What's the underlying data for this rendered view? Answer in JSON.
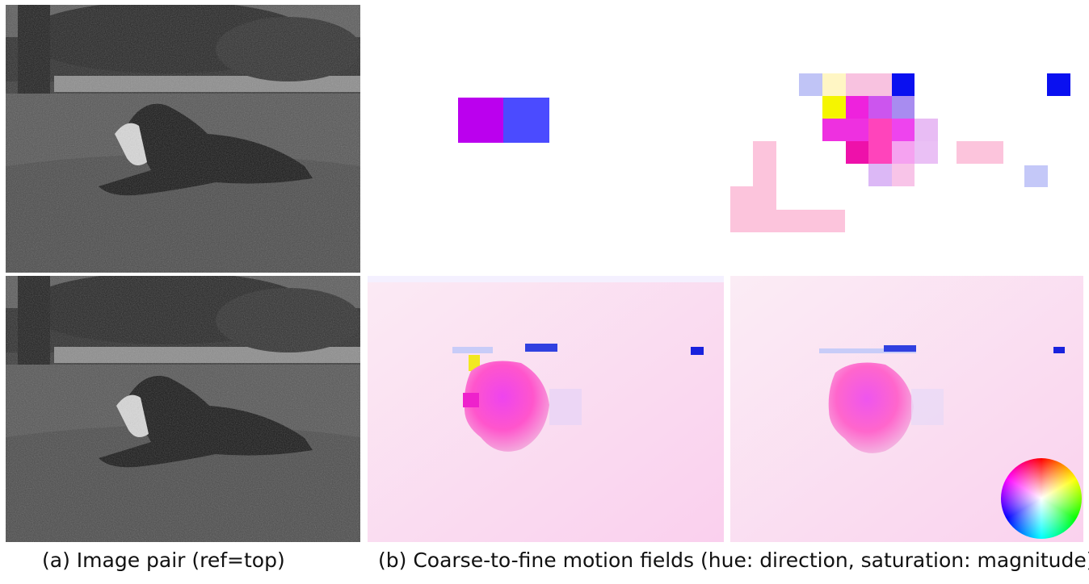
{
  "captions": {
    "a": "(a) Image pair (ref=top)",
    "b": "(b) Coarse-to-fine motion fields (hue: direction, saturation: magnitude)"
  },
  "panels": {
    "photo_top": "grayscale photograph of a dog lying on grass (reference frame)",
    "photo_bottom": "grayscale photograph of a dog lying on grass (second frame)",
    "flow_coarse": "coarsest-level motion field",
    "flow_mid": "intermediate-level motion field",
    "flow_fine1": "fine-level motion field",
    "flow_fine2": "finest-level motion field with color wheel legend"
  },
  "legend": {
    "type": "color-wheel",
    "meaning": "hue encodes direction, saturation encodes magnitude"
  }
}
